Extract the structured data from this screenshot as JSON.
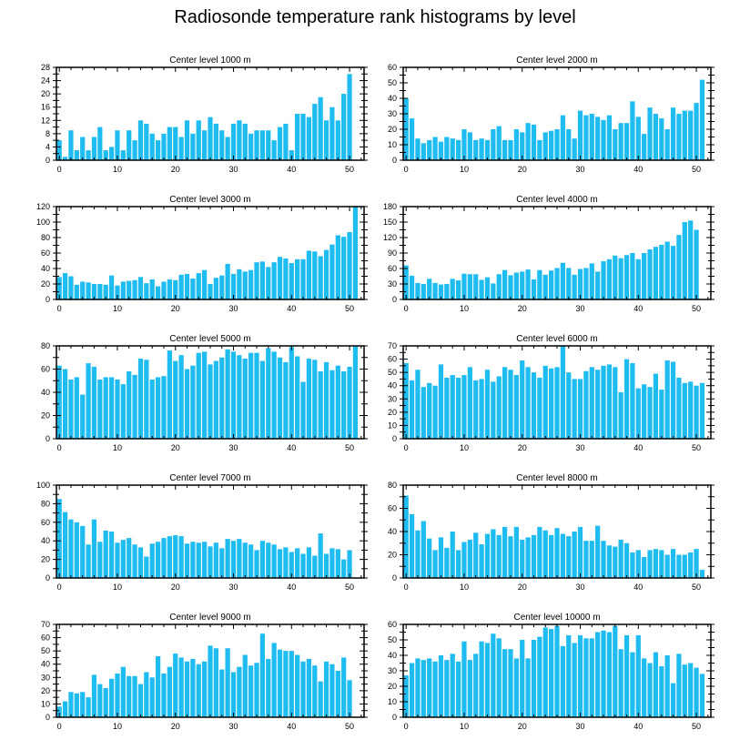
{
  "title": "Radiosonde temperature rank histograms by level",
  "colors": {
    "bar": "#1ebcf0",
    "axis": "#000000",
    "background": "#ffffff"
  },
  "chart_data": [
    {
      "type": "bar",
      "title": "Center level 1000 m",
      "xlabel": "",
      "ylabel": "",
      "xlim": [
        -0.5,
        52.5
      ],
      "ylim": [
        0,
        28
      ],
      "xticks": [
        0,
        10,
        20,
        30,
        40,
        50
      ],
      "yticks": [
        0,
        4,
        8,
        12,
        16,
        20,
        24,
        28
      ],
      "values": [
        6,
        1,
        9,
        3,
        7,
        3,
        7,
        10,
        3,
        4,
        9,
        3,
        9,
        6,
        12,
        11,
        8,
        6,
        8,
        10,
        10,
        7,
        12,
        8,
        12,
        9,
        13,
        11,
        9,
        7,
        11,
        12,
        11,
        8,
        9,
        9,
        9,
        6,
        10,
        11,
        3,
        14,
        14,
        13,
        17,
        19,
        12,
        16,
        12,
        20,
        26
      ]
    },
    {
      "type": "bar",
      "title": "Center level 2000 m",
      "xlabel": "",
      "ylabel": "",
      "xlim": [
        -0.5,
        52.5
      ],
      "ylim": [
        0,
        60
      ],
      "xticks": [
        0,
        10,
        20,
        30,
        40,
        50
      ],
      "yticks": [
        0,
        10,
        20,
        30,
        40,
        50,
        60
      ],
      "values": [
        40,
        27,
        14,
        11,
        13,
        15,
        12,
        15,
        14,
        13,
        20,
        18,
        13,
        14,
        13,
        20,
        22,
        13,
        13,
        20,
        18,
        24,
        23,
        13,
        18,
        19,
        20,
        29,
        20,
        14,
        32,
        29,
        30,
        28,
        26,
        29,
        20,
        24,
        24,
        38,
        28,
        17,
        34,
        30,
        27,
        20,
        34,
        30,
        32,
        32,
        37,
        52
      ]
    },
    {
      "type": "bar",
      "title": "Center level 3000 m",
      "xlabel": "",
      "ylabel": "",
      "xlim": [
        -0.5,
        52.5
      ],
      "ylim": [
        0,
        120
      ],
      "xticks": [
        0,
        10,
        20,
        30,
        40,
        50
      ],
      "yticks": [
        0,
        20,
        40,
        60,
        80,
        100,
        120
      ],
      "values": [
        29,
        34,
        30,
        19,
        23,
        22,
        20,
        20,
        19,
        31,
        18,
        23,
        24,
        25,
        29,
        21,
        26,
        17,
        23,
        26,
        25,
        32,
        33,
        27,
        34,
        38,
        20,
        28,
        31,
        46,
        33,
        39,
        36,
        38,
        48,
        49,
        42,
        48,
        55,
        53,
        47,
        52,
        52,
        63,
        62,
        56,
        64,
        71,
        83,
        81,
        87,
        120
      ]
    },
    {
      "type": "bar",
      "title": "Center level 4000 m",
      "xlabel": "",
      "ylabel": "",
      "xlim": [
        -0.5,
        52.5
      ],
      "ylim": [
        0,
        180
      ],
      "xticks": [
        0,
        10,
        20,
        30,
        40,
        50
      ],
      "yticks": [
        0,
        30,
        60,
        90,
        120,
        150,
        180
      ],
      "values": [
        66,
        46,
        32,
        30,
        40,
        32,
        29,
        30,
        40,
        37,
        50,
        49,
        49,
        38,
        43,
        31,
        49,
        57,
        47,
        52,
        54,
        58,
        39,
        57,
        48,
        56,
        61,
        71,
        61,
        48,
        59,
        61,
        70,
        54,
        74,
        78,
        85,
        80,
        86,
        90,
        78,
        90,
        97,
        102,
        106,
        112,
        104,
        125,
        150,
        153,
        135
      ]
    },
    {
      "type": "bar",
      "title": "Center level 5000 m",
      "xlabel": "",
      "ylabel": "",
      "xlim": [
        -0.5,
        52.5
      ],
      "ylim": [
        0,
        80
      ],
      "xticks": [
        0,
        10,
        20,
        30,
        40,
        50
      ],
      "yticks": [
        0,
        20,
        40,
        60,
        80
      ],
      "values": [
        63,
        60,
        51,
        53,
        38,
        65,
        62,
        51,
        53,
        53,
        51,
        47,
        58,
        55,
        69,
        68,
        51,
        53,
        54,
        76,
        67,
        72,
        60,
        63,
        74,
        75,
        64,
        67,
        70,
        77,
        75,
        72,
        69,
        74,
        74,
        67,
        78,
        75,
        70,
        66,
        79,
        71,
        49,
        69,
        68,
        58,
        66,
        59,
        63,
        58,
        62,
        80
      ]
    },
    {
      "type": "bar",
      "title": "Center level 6000 m",
      "xlabel": "",
      "ylabel": "",
      "xlim": [
        -0.5,
        52.5
      ],
      "ylim": [
        0,
        70
      ],
      "xticks": [
        0,
        10,
        20,
        30,
        40,
        50
      ],
      "yticks": [
        0,
        10,
        20,
        30,
        40,
        50,
        60,
        70
      ],
      "values": [
        57,
        44,
        52,
        39,
        42,
        40,
        56,
        46,
        48,
        46,
        48,
        54,
        44,
        45,
        52,
        43,
        47,
        54,
        52,
        48,
        59,
        54,
        50,
        46,
        55,
        53,
        54,
        70,
        50,
        45,
        45,
        51,
        54,
        52,
        55,
        56,
        54,
        35,
        60,
        57,
        38,
        41,
        39,
        49,
        37,
        59,
        58,
        46,
        42,
        43,
        40,
        42
      ]
    },
    {
      "type": "bar",
      "title": "Center level 7000 m",
      "xlabel": "",
      "ylabel": "",
      "xlim": [
        -0.5,
        52.5
      ],
      "ylim": [
        0,
        100
      ],
      "xticks": [
        0,
        10,
        20,
        30,
        40,
        50
      ],
      "yticks": [
        0,
        20,
        40,
        60,
        80,
        100
      ],
      "values": [
        85,
        71,
        63,
        60,
        56,
        36,
        63,
        39,
        51,
        50,
        38,
        41,
        43,
        36,
        33,
        23,
        37,
        39,
        43,
        45,
        46,
        45,
        37,
        39,
        38,
        39,
        34,
        38,
        32,
        42,
        40,
        42,
        38,
        36,
        30,
        40,
        38,
        36,
        31,
        33,
        28,
        32,
        26,
        33,
        24,
        48,
        26,
        32,
        31,
        20,
        30
      ]
    },
    {
      "type": "bar",
      "title": "Center level 8000 m",
      "xlabel": "",
      "ylabel": "",
      "xlim": [
        -0.5,
        52.5
      ],
      "ylim": [
        0,
        80
      ],
      "xticks": [
        0,
        10,
        20,
        30,
        40,
        50
      ],
      "yticks": [
        0,
        20,
        40,
        60,
        80
      ],
      "values": [
        71,
        55,
        41,
        49,
        34,
        24,
        35,
        26,
        40,
        24,
        31,
        33,
        39,
        29,
        38,
        42,
        37,
        44,
        36,
        44,
        33,
        35,
        37,
        44,
        41,
        37,
        43,
        38,
        36,
        40,
        44,
        32,
        32,
        45,
        32,
        28,
        27,
        33,
        30,
        22,
        24,
        18,
        24,
        25,
        24,
        20,
        25,
        20,
        20,
        22,
        25,
        7
      ]
    },
    {
      "type": "bar",
      "title": "Center level 9000 m",
      "xlabel": "",
      "ylabel": "",
      "xlim": [
        -0.5,
        52.5
      ],
      "ylim": [
        0,
        70
      ],
      "xticks": [
        0,
        10,
        20,
        30,
        40,
        50
      ],
      "yticks": [
        0,
        10,
        20,
        30,
        40,
        50,
        60,
        70
      ],
      "values": [
        8,
        12,
        19,
        18,
        19,
        15,
        32,
        25,
        22,
        29,
        33,
        38,
        31,
        31,
        25,
        34,
        30,
        46,
        33,
        38,
        48,
        45,
        42,
        44,
        40,
        42,
        54,
        52,
        36,
        52,
        34,
        38,
        47,
        39,
        41,
        63,
        44,
        56,
        51,
        50,
        50,
        47,
        42,
        44,
        39,
        27,
        42,
        40,
        35,
        45,
        28
      ]
    },
    {
      "type": "bar",
      "title": "Center level 10000 m",
      "xlabel": "",
      "ylabel": "",
      "xlim": [
        -0.5,
        52.5
      ],
      "ylim": [
        0,
        60
      ],
      "xticks": [
        0,
        10,
        20,
        30,
        40,
        50
      ],
      "yticks": [
        0,
        10,
        20,
        30,
        40,
        50,
        60
      ],
      "values": [
        27,
        35,
        38,
        37,
        38,
        36,
        40,
        37,
        41,
        36,
        49,
        37,
        41,
        49,
        48,
        54,
        51,
        44,
        44,
        38,
        50,
        38,
        50,
        52,
        58,
        57,
        59,
        46,
        53,
        48,
        53,
        51,
        51,
        55,
        56,
        55,
        59,
        44,
        53,
        42,
        53,
        38,
        35,
        42,
        33,
        40,
        22,
        41,
        34,
        35,
        32,
        28
      ]
    }
  ]
}
